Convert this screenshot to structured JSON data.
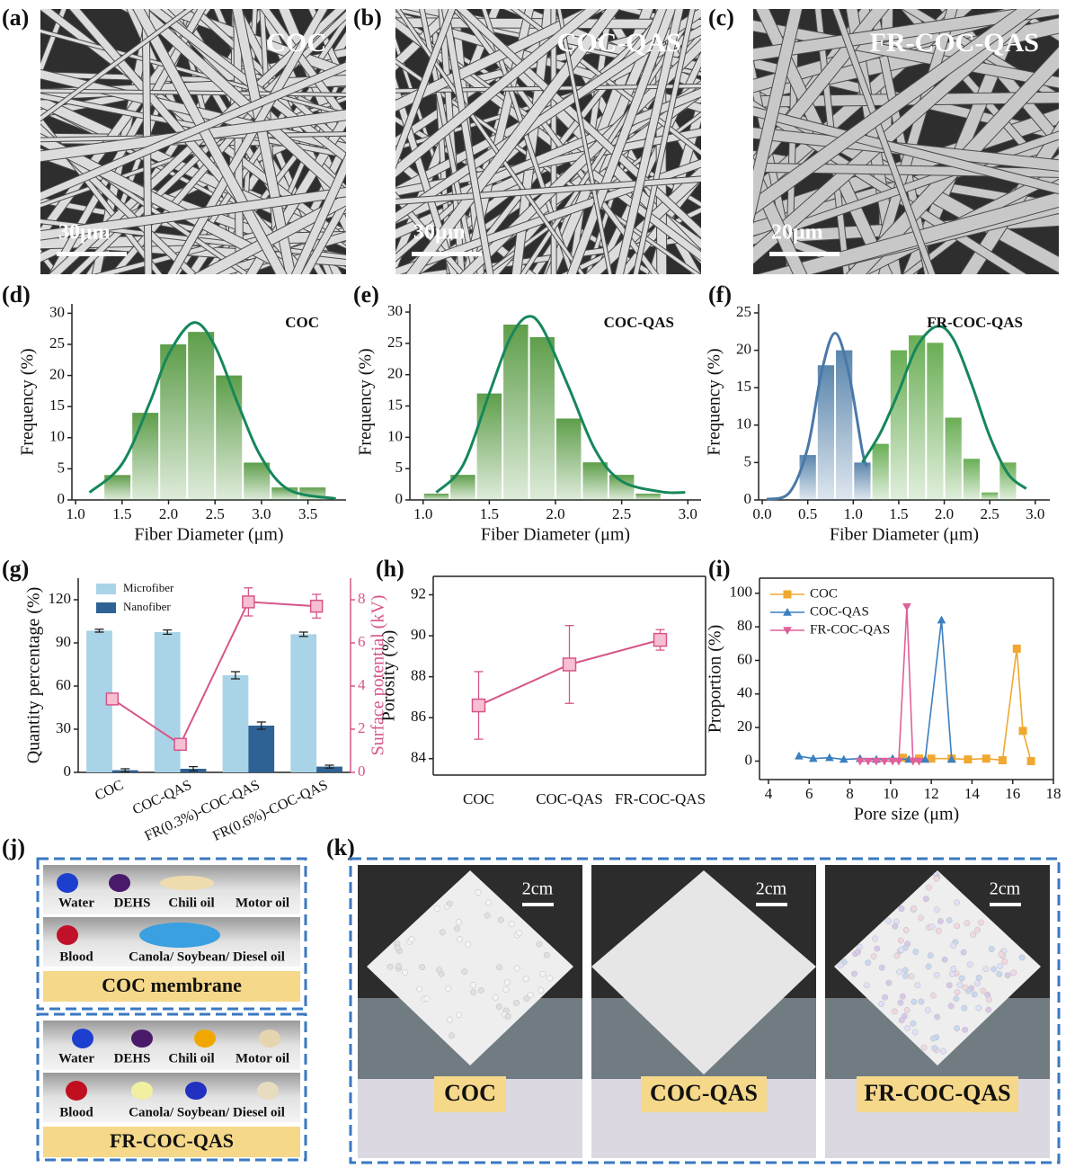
{
  "panel_labels": [
    "(a)",
    "(b)",
    "(c)",
    "(d)",
    "(e)",
    "(f)",
    "(g)",
    "(h)",
    "(i)",
    "(j)",
    "(k)"
  ],
  "sem_images": [
    {
      "title": "COC",
      "scale": "30μm"
    },
    {
      "title": "COC-QAS",
      "scale": "30μm"
    },
    {
      "title": "FR-COC-QAS",
      "scale": "20μm"
    }
  ],
  "chart_data": [
    {
      "type": "histogram",
      "title": "COC",
      "xlabel": "Fiber Diameter (μm)",
      "ylabel": "Frequency (%)",
      "xlim": [
        0.96,
        3.91
      ],
      "xticks": [
        {
          "value": 1,
          "label": "1.0"
        },
        1.5,
        {
          "value": 2,
          "label": "2.0"
        },
        2.5,
        {
          "value": 3,
          "label": "3.0"
        },
        3.5
      ],
      "ylim": [
        0,
        31.5
      ],
      "yticks": [
        0,
        5,
        10,
        15,
        20,
        25,
        30
      ],
      "series": [
        {
          "color": "#5e9e4a",
          "bins": [
            1.3,
            1.6,
            1.9,
            2.2,
            2.5,
            2.8,
            3.1,
            3.4,
            3.7
          ],
          "values": [
            4,
            14,
            25,
            27,
            20,
            6,
            2,
            2
          ]
        }
      ],
      "fits": [
        {
          "color": "#16875a",
          "x": [
            1.15,
            1.5,
            1.8,
            2.0,
            2.27,
            2.5,
            2.75,
            3.0,
            3.3,
            3.8
          ],
          "y": [
            1.2,
            5.8,
            15.7,
            23.4,
            28.5,
            24.7,
            15.3,
            6.8,
            1.6,
            0.2
          ]
        }
      ]
    },
    {
      "type": "histogram",
      "title": "COC-QAS",
      "xlabel": "Fiber Diameter (μm)",
      "ylabel": "Frequency (%)",
      "xlim": [
        0.9,
        3.1
      ],
      "xticks": [
        {
          "value": 1,
          "label": "1.0"
        },
        1.5,
        {
          "value": 2,
          "label": "2.0"
        },
        2.5,
        {
          "value": 3,
          "label": "3.0"
        }
      ],
      "ylim": [
        0,
        31.3
      ],
      "yticks": [
        0,
        5,
        10,
        15,
        20,
        25,
        30
      ],
      "series": [
        {
          "color": "#5e9e4a",
          "bins": [
            1.0,
            1.2,
            1.4,
            1.6,
            1.8,
            2.0,
            2.2,
            2.4,
            2.6,
            2.8
          ],
          "values": [
            1,
            4,
            17,
            28,
            26,
            13,
            6,
            4,
            1
          ]
        }
      ],
      "fits": [
        {
          "color": "#16875a",
          "x": [
            1.1,
            1.3,
            1.5,
            1.65,
            1.78,
            1.9,
            2.1,
            2.3,
            2.5,
            2.8,
            2.98
          ],
          "y": [
            1.2,
            5.5,
            17,
            25.5,
            29.2,
            27.5,
            18,
            8,
            3,
            1.3,
            1.2
          ]
        }
      ]
    },
    {
      "type": "histogram",
      "title": "FR-COC-QAS",
      "xlabel": "Fiber Diameter (μm)",
      "ylabel": "Frequency (%)",
      "xlim": [
        -0.04,
        3.16
      ],
      "xticks": [
        {
          "value": 0,
          "label": "0.0"
        },
        0.5,
        {
          "value": 1,
          "label": "1.0"
        },
        1.5,
        {
          "value": 2,
          "label": "2.0"
        },
        2.5,
        {
          "value": 3,
          "label": "3.0"
        }
      ],
      "ylim": [
        0,
        26.2
      ],
      "yticks": [
        0,
        5,
        10,
        15,
        20,
        25
      ],
      "series": [
        {
          "color": "#5b86ad",
          "bins": [
            0.4,
            0.6,
            0.8,
            1.0,
            1.2
          ],
          "values": [
            6,
            18,
            20,
            5
          ]
        },
        {
          "color": "#6aae55",
          "bins": [
            1.2,
            1.4,
            1.6,
            1.8,
            2.0,
            2.2,
            2.4,
            2.6,
            2.8
          ],
          "values": [
            7.5,
            20,
            22,
            21,
            11,
            5.5,
            1,
            5
          ]
        }
      ],
      "fits": [
        {
          "color": "#4a78a8",
          "x": [
            0.05,
            0.3,
            0.5,
            0.65,
            0.8,
            0.95,
            1.1,
            1.15
          ],
          "y": [
            0.1,
            1,
            7,
            17,
            22.3,
            17,
            6.5,
            4.5
          ]
        },
        {
          "color": "#16875a",
          "x": [
            1.1,
            1.3,
            1.5,
            1.7,
            1.92,
            2.1,
            2.3,
            2.5,
            2.7,
            2.9
          ],
          "y": [
            5,
            9,
            14.5,
            20.5,
            23.2,
            21.5,
            15.5,
            8.5,
            3.5,
            1.5
          ]
        }
      ]
    },
    {
      "type": "bar-line",
      "ylabel": "Quantity percentage (%)",
      "y2label": "Surface potential (kV)",
      "categories": [
        "COC",
        "COC-QAS",
        "FR(0.3%)-COC-QAS",
        "FR(0.6%)-COC-QAS"
      ],
      "ylim": [
        0,
        135
      ],
      "yticks": [
        0,
        30,
        60,
        90,
        120
      ],
      "y2lim": [
        0,
        9
      ],
      "y2ticks": [
        0,
        2,
        4,
        6,
        8
      ],
      "series": [
        {
          "name": "Microfiber",
          "type": "bar",
          "color": "#a9d3e6",
          "values": [
            98.5,
            97.5,
            67.5,
            96
          ],
          "errors": [
            1,
            1.5,
            2.5,
            1.5
          ]
        },
        {
          "name": "Nanofiber",
          "type": "bar",
          "color": "#2e6294",
          "values": [
            1.5,
            2.5,
            32.5,
            4
          ],
          "errors": [
            1,
            1.5,
            2.5,
            1
          ]
        },
        {
          "type": "line",
          "axis": "y2",
          "color": "#d6558a",
          "values": [
            3.4,
            1.3,
            7.9,
            7.7
          ],
          "errors": [
            0,
            0,
            0.65,
            0.55
          ]
        }
      ]
    },
    {
      "type": "line",
      "ylabel": "Porosity (%)",
      "categories": [
        "COC",
        "COC-QAS",
        "FR-COC-QAS"
      ],
      "ylim": [
        83.2,
        92.9
      ],
      "yticks": [
        84,
        86,
        88,
        90,
        92
      ],
      "series": [
        {
          "color": "#d6558a",
          "marker": "square",
          "values": [
            86.6,
            88.6,
            89.8
          ],
          "errors": [
            1.65,
            1.9,
            0.5
          ]
        }
      ]
    },
    {
      "type": "line",
      "xlabel": "Pore size (μm)",
      "ylabel": "Proportion (%)",
      "legend": "upper left",
      "xlim": [
        3.56,
        18
      ],
      "xticks": [
        4,
        6,
        8,
        10,
        12,
        14,
        16,
        18
      ],
      "ylim": [
        -11,
        109
      ],
      "yticks": [
        0,
        20,
        40,
        60,
        80,
        100
      ],
      "series": [
        {
          "name": "COC",
          "color": "#f0a830",
          "marker": "square",
          "x": [
            10.6,
            11.4,
            12.0,
            13.0,
            13.8,
            14.7,
            15.5,
            16.2,
            16.5,
            16.9
          ],
          "values": [
            2,
            1.5,
            1.5,
            1.5,
            1,
            1.5,
            0.5,
            67,
            18,
            0
          ]
        },
        {
          "name": "COC-QAS",
          "color": "#3a7fc0",
          "marker": "triangle",
          "x": [
            5.5,
            6.2,
            7.0,
            7.7,
            8.5,
            9.3,
            10.1,
            10.9,
            11.7,
            12.5,
            13.0
          ],
          "values": [
            3,
            1.5,
            2,
            1,
            1.5,
            1,
            1.5,
            1,
            1,
            84,
            1
          ]
        },
        {
          "name": "FR-COC-QAS",
          "color": "#e0609c",
          "marker": "triangle-down",
          "x": [
            8.5,
            8.9,
            9.3,
            9.7,
            10.1,
            10.4,
            10.8,
            11.1,
            11.4
          ],
          "values": [
            0,
            0,
            0,
            0,
            0,
            0,
            92,
            0,
            0
          ]
        }
      ]
    }
  ],
  "wettability": [
    {
      "row1": [
        "Water",
        "DEHS",
        "Chili oil",
        "Motor oil"
      ],
      "row2": [
        "Blood",
        "Canola/ Soybean/ Diesel oil"
      ],
      "label": "COC membrane"
    },
    {
      "row1": [
        "Water",
        "DEHS",
        "Chili oil",
        "Motor oil"
      ],
      "row2": [
        "Blood",
        "Canola/ Soybean/ Diesel oil"
      ],
      "label": "FR-COC-QAS"
    }
  ],
  "photos": [
    {
      "scale": "2cm",
      "label": "COC"
    },
    {
      "scale": "2cm",
      "label": "COC-QAS"
    },
    {
      "scale": "2cm",
      "label": "FR-COC-QAS"
    }
  ]
}
